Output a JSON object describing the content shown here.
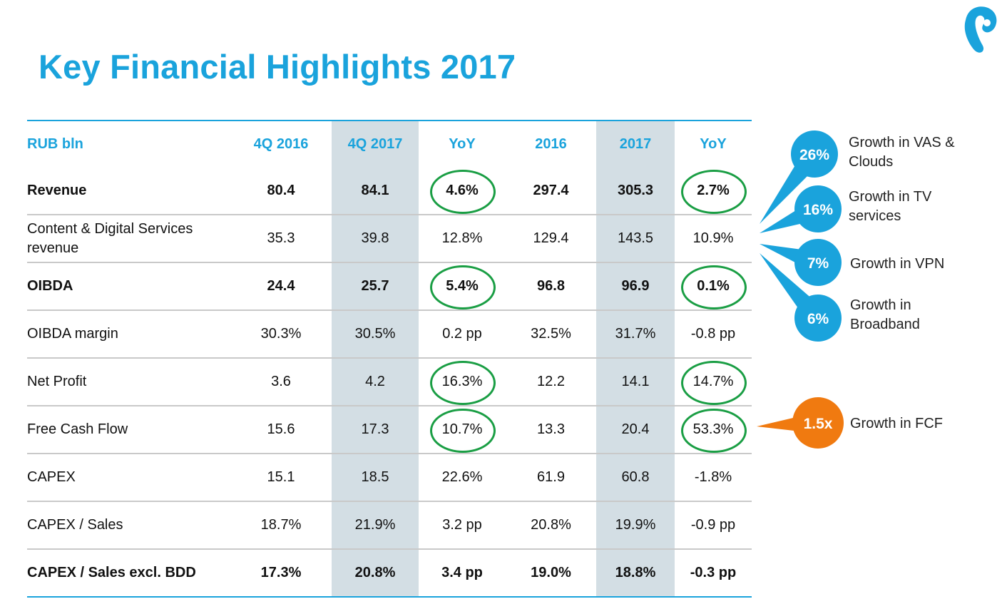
{
  "title": "Key Financial Highlights 2017",
  "logo_icon": "brand-logo-icon",
  "table": {
    "headers": [
      "RUB bln",
      "4Q 2016",
      "4Q 2017",
      "YoY",
      "2016",
      "2017",
      "YoY"
    ],
    "rows": [
      {
        "label": "Revenue",
        "bold": true,
        "cells": [
          "80.4",
          "84.1",
          "4.6%",
          "297.4",
          "305.3",
          "2.7%"
        ],
        "circled": [
          2,
          5
        ]
      },
      {
        "label": "Content & Digital Services revenue",
        "bold": false,
        "cells": [
          "35.3",
          "39.8",
          "12.8%",
          "129.4",
          "143.5",
          "10.9%"
        ],
        "circled": []
      },
      {
        "label": "OIBDA",
        "bold": true,
        "cells": [
          "24.4",
          "25.7",
          "5.4%",
          "96.8",
          "96.9",
          "0.1%"
        ],
        "circled": [
          2,
          5
        ]
      },
      {
        "label": "OIBDA margin",
        "bold": false,
        "cells": [
          "30.3%",
          "30.5%",
          "0.2 pp",
          "32.5%",
          "31.7%",
          "-0.8 pp"
        ],
        "circled": []
      },
      {
        "label": "Net Profit",
        "bold": false,
        "cells": [
          "3.6",
          "4.2",
          "16.3%",
          "12.2",
          "14.1",
          "14.7%"
        ],
        "circled": [
          2,
          5
        ]
      },
      {
        "label": "Free Cash Flow",
        "bold": false,
        "cells": [
          "15.6",
          "17.3",
          "10.7%",
          "13.3",
          "20.4",
          "53.3%"
        ],
        "circled": [
          2,
          5
        ]
      },
      {
        "label": "CAPEX",
        "bold": false,
        "cells": [
          "15.1",
          "18.5",
          "22.6%",
          "61.9",
          "60.8",
          "-1.8%"
        ],
        "circled": []
      },
      {
        "label": "CAPEX / Sales",
        "bold": false,
        "cells": [
          "18.7%",
          "21.9%",
          "3.2 pp",
          "20.8%",
          "19.9%",
          "-0.9 pp"
        ],
        "circled": []
      },
      {
        "label": "CAPEX / Sales excl. BDD",
        "bold": true,
        "cells": [
          "17.3%",
          "20.8%",
          "3.4 pp",
          "19.0%",
          "18.8%",
          "-0.3 pp"
        ],
        "circled": []
      }
    ]
  },
  "callouts": [
    {
      "value": "26%",
      "text": "Growth in VAS & Clouds",
      "color": "#1aa3dc"
    },
    {
      "value": "16%",
      "text": "Growth in TV services",
      "color": "#1aa3dc"
    },
    {
      "value": "7%",
      "text": "Growth in VPN",
      "color": "#1aa3dc"
    },
    {
      "value": "6%",
      "text": "Growth in Broadband",
      "color": "#1aa3dc"
    },
    {
      "value": "1.5x",
      "text": "Growth in FCF",
      "color": "#f07a10"
    }
  ],
  "colors": {
    "accent": "#1aa3dc",
    "circle": "#1a9e44",
    "shade": "#d3dee4",
    "orange": "#f07a10"
  }
}
